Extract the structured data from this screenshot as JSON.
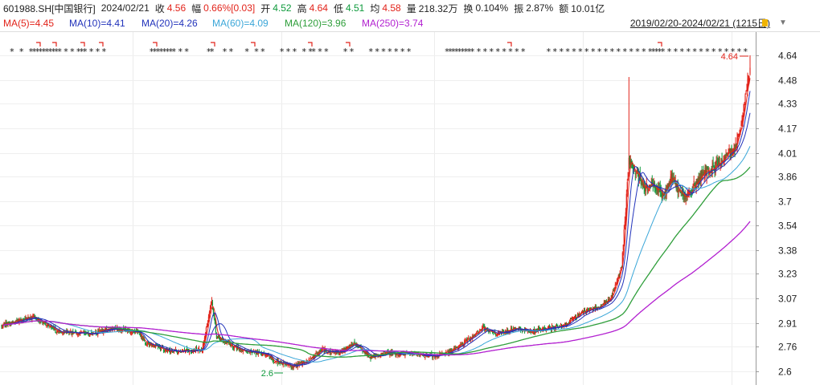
{
  "header": {
    "symbol": "601988.SH[中国银行]",
    "date": "2024/02/21",
    "close_label": "收",
    "close_value": "4.56",
    "change_label": "幅",
    "change_value": "0.66%[0.03]",
    "open_label": "开",
    "open_value": "4.52",
    "high_label": "高",
    "high_value": "4.64",
    "low_label": "低",
    "low_value": "4.51",
    "avg_label": "均",
    "avg_value": "4.58",
    "volume_label": "量",
    "volume_value": "218.32万",
    "turnover_label": "换",
    "turnover_value": "0.104%",
    "amplitude_label": "振",
    "amplitude_value": "2.87%",
    "amount_label": "额",
    "amount_value": "10.01亿",
    "date_range": "2019/02/20-2024/02/21 (1215日)"
  },
  "ma_legend": [
    {
      "label": "MA(5)=4.45",
      "color": "#e2231a"
    },
    {
      "label": "MA(10)=4.41",
      "color": "#2233bb"
    },
    {
      "label": "MA(20)=4.26",
      "color": "#2233bb"
    },
    {
      "label": "MA(60)=4.09",
      "color": "#3aa6d8"
    },
    {
      "label": "MA(120)=3.96",
      "color": "#2e9e3a"
    },
    {
      "label": "MA(250)=3.74",
      "color": "#b21fd0"
    }
  ],
  "colors": {
    "up": "#e2231a",
    "down": "#0e9a3c",
    "grid": "#e6e6e6"
  },
  "chart_data": {
    "type": "candlestick",
    "ylim": [
      2.55,
      4.7
    ],
    "y_ticks": [
      "4.64",
      "4.48",
      "4.33",
      "4.17",
      "4.01",
      "3.86",
      "3.7",
      "3.54",
      "3.38",
      "3.23",
      "3.07",
      "2.91",
      "2.76",
      "2.6"
    ],
    "annotations": {
      "max_label": "4.64",
      "min_label": "2.6"
    },
    "x_range": [
      "2019/02/20",
      "2024/02/21"
    ],
    "trading_days": 1215,
    "close_anchors": [
      [
        0,
        2.9
      ],
      [
        40,
        2.95
      ],
      [
        70,
        2.86
      ],
      [
        110,
        2.84
      ],
      [
        140,
        2.88
      ],
      [
        170,
        2.85
      ],
      [
        180,
        2.78
      ],
      [
        210,
        2.73
      ],
      [
        250,
        2.74
      ],
      [
        262,
        3.06
      ],
      [
        268,
        2.82
      ],
      [
        300,
        2.73
      ],
      [
        330,
        2.71
      ],
      [
        340,
        2.67
      ],
      [
        360,
        2.63
      ],
      [
        380,
        2.66
      ],
      [
        400,
        2.74
      ],
      [
        420,
        2.72
      ],
      [
        440,
        2.78
      ],
      [
        460,
        2.69
      ],
      [
        480,
        2.72
      ],
      [
        510,
        2.71
      ],
      [
        540,
        2.7
      ],
      [
        560,
        2.73
      ],
      [
        580,
        2.8
      ],
      [
        600,
        2.88
      ],
      [
        620,
        2.84
      ],
      [
        640,
        2.88
      ],
      [
        660,
        2.86
      ],
      [
        680,
        2.88
      ],
      [
        700,
        2.89
      ],
      [
        720,
        2.97
      ],
      [
        745,
        3.02
      ],
      [
        760,
        3.08
      ],
      [
        773,
        3.28
      ],
      [
        782,
        3.95
      ],
      [
        792,
        3.88
      ],
      [
        800,
        3.78
      ],
      [
        812,
        3.82
      ],
      [
        825,
        3.72
      ],
      [
        835,
        3.85
      ],
      [
        850,
        3.72
      ],
      [
        860,
        3.78
      ],
      [
        875,
        3.88
      ],
      [
        890,
        3.92
      ],
      [
        905,
        4.0
      ],
      [
        915,
        4.05
      ],
      [
        925,
        4.3
      ],
      [
        933,
        4.56
      ]
    ],
    "star_rows": [
      [
        3,
        6,
        9,
        10,
        11,
        12,
        13,
        14,
        15,
        16,
        17,
        18,
        20,
        22,
        24,
        25,
        26,
        28,
        30,
        32
      ],
      [
        47,
        48,
        49,
        50,
        51,
        52,
        53,
        54,
        56,
        58,
        65,
        66,
        70,
        72,
        77,
        80,
        82,
        88,
        90,
        92,
        95,
        97,
        98,
        100,
        102,
        108,
        110,
        116,
        118,
        120,
        122,
        124,
        126,
        128
      ],
      [
        140,
        141,
        142,
        143,
        144,
        145,
        146,
        147,
        148,
        150,
        152,
        154,
        156,
        158,
        160,
        162,
        164,
        172,
        174,
        176
      ],
      [
        178,
        180,
        182,
        184,
        186,
        188,
        190,
        192,
        194,
        196,
        198,
        200,
        202,
        204
      ],
      [
        205,
        206,
        207,
        208,
        210,
        212,
        214,
        216,
        218,
        220,
        222,
        224,
        226,
        228,
        230,
        232,
        234,
        236
      ]
    ],
    "series": [
      {
        "name": "MA(5)",
        "period": 5,
        "color": "#e2231a"
      },
      {
        "name": "MA(10)",
        "period": 10,
        "color": "#2233bb"
      },
      {
        "name": "MA(20)",
        "period": 20,
        "color": "#2233bb"
      },
      {
        "name": "MA(60)",
        "period": 60,
        "color": "#3aa6d8"
      },
      {
        "name": "MA(120)",
        "period": 120,
        "color": "#2e9e3a"
      },
      {
        "name": "MA(250)",
        "period": 250,
        "color": "#b21fd0"
      }
    ]
  }
}
